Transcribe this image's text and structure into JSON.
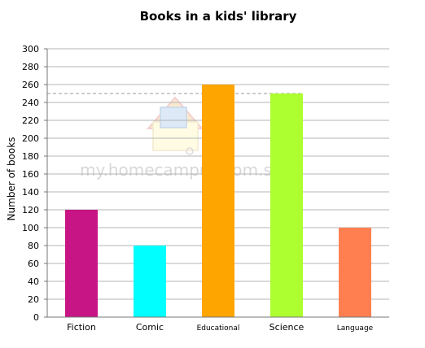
{
  "chart_data": {
    "type": "bar",
    "title": "Books in a kids' library",
    "xlabel": "",
    "ylabel": "Number of books",
    "categories": [
      "Fiction",
      "Comic",
      "Educational",
      "Science",
      "Language"
    ],
    "values": [
      120,
      80,
      260,
      250,
      100
    ],
    "colors": [
      "#c71585",
      "#00ffff",
      "#ffa500",
      "#adff2f",
      "#ff7f50"
    ],
    "ylim": [
      0,
      300
    ],
    "yticks": [
      0,
      20,
      40,
      60,
      80,
      100,
      120,
      140,
      160,
      180,
      200,
      220,
      240,
      260,
      280,
      300
    ],
    "reference_line": 250,
    "grid": true,
    "watermark": "my.homecampus.com.sg"
  }
}
